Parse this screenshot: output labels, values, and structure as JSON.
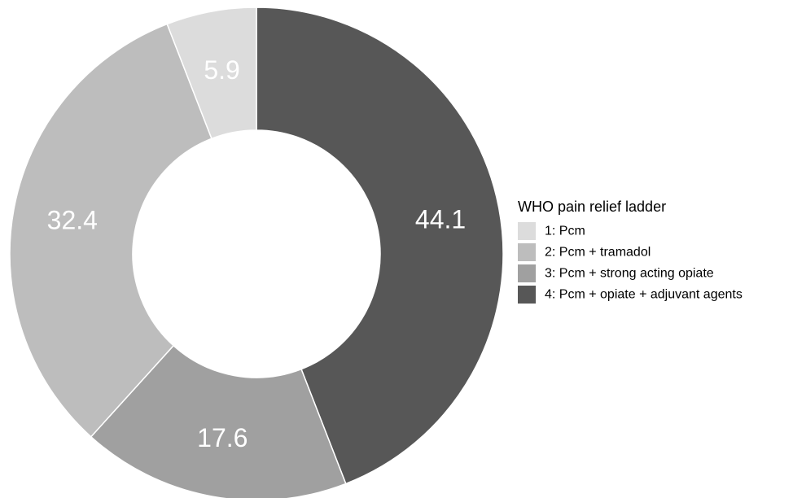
{
  "chart_data": {
    "type": "pie",
    "donut": true,
    "start_angle": "12 o'clock",
    "direction": "clockwise",
    "legend": {
      "title": "WHO pain relief ladder",
      "placement": "right"
    },
    "slices": [
      {
        "name": "4: Pcm + opiate + adjuvant agents",
        "value": 44.1,
        "label": "44.1",
        "color": "#575757"
      },
      {
        "name": "3: Pcm + strong acting opiate",
        "value": 17.6,
        "label": "17.6",
        "color": "#a0a0a0"
      },
      {
        "name": "2: Pcm + tramadol",
        "value": 32.4,
        "label": "32.4",
        "color": "#bdbdbd"
      },
      {
        "name": "1: Pcm",
        "value": 5.9,
        "label": "5.9",
        "color": "#dcdcdc"
      }
    ],
    "legend_order": [
      {
        "name": "1: Pcm",
        "color": "#dcdcdc"
      },
      {
        "name": "2: Pcm + tramadol",
        "color": "#bdbdbd"
      },
      {
        "name": "3: Pcm + strong acting opiate",
        "color": "#a0a0a0"
      },
      {
        "name": "4: Pcm + opiate + adjuvant agents",
        "color": "#575757"
      }
    ]
  }
}
